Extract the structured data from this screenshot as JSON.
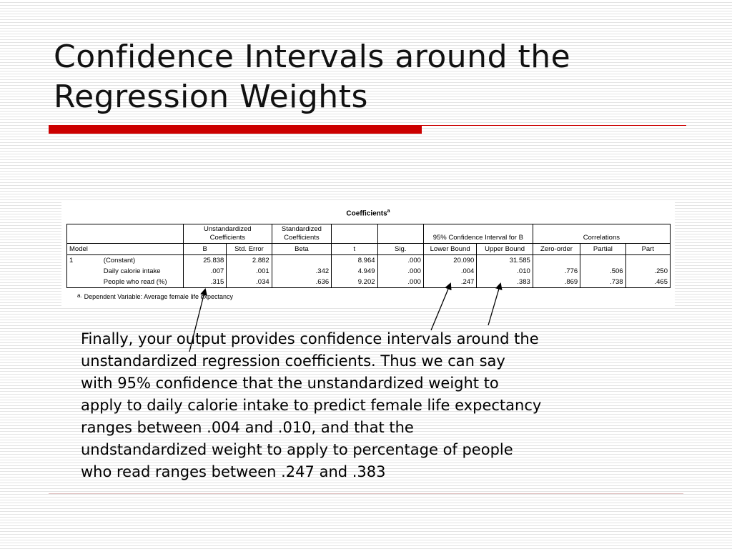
{
  "title": {
    "line1": "Confidence Intervals around the",
    "line2": "Regression Weights"
  },
  "table": {
    "caption": "Coefficients",
    "caption_sup": "a",
    "header_groups": {
      "unstandardized": "Unstandardized Coefficients",
      "standardized": "Standardized Coefficients",
      "ci": "95% Confidence Interval for B",
      "correlations": "Correlations"
    },
    "columns": [
      "Model",
      "B",
      "Std. Error",
      "Beta",
      "t",
      "Sig.",
      "Lower Bound",
      "Upper Bound",
      "Zero-order",
      "Partial",
      "Part"
    ],
    "rows": [
      {
        "model": "1",
        "label": "(Constant)",
        "b": "25.838",
        "se": "2.882",
        "beta": "",
        "t": "8.964",
        "sig": ".000",
        "lower": "20.090",
        "upper": "31.585",
        "zero": "",
        "partial": "",
        "part": ""
      },
      {
        "model": "",
        "label": "Daily calorie intake",
        "b": ".007",
        "se": ".001",
        "beta": ".342",
        "t": "4.949",
        "sig": ".000",
        "lower": ".004",
        "upper": ".010",
        "zero": ".776",
        "partial": ".506",
        "part": ".250"
      },
      {
        "model": "",
        "label": "People who read (%)",
        "b": ".315",
        "se": ".034",
        "beta": ".636",
        "t": "9.202",
        "sig": ".000",
        "lower": ".247",
        "upper": ".383",
        "zero": ".869",
        "partial": ".738",
        "part": ".465"
      }
    ],
    "footnote_marker": "a.",
    "footnote": "Dependent Variable: Average female life expectancy"
  },
  "body": "Finally, your output provides confidence intervals around the\nunstandardized regression coefficients.  Thus we can say\nwith 95% confidence that the unstandardized weight to\napply to daily calorie intake to predict female life expectancy\nranges between .004 and .010, and that the\nundstandardized weight to apply to percentage of people\nwho read ranges between .247 and .383",
  "colors": {
    "accent_red": "#cc0000",
    "stripe": "#e3e3e3"
  }
}
